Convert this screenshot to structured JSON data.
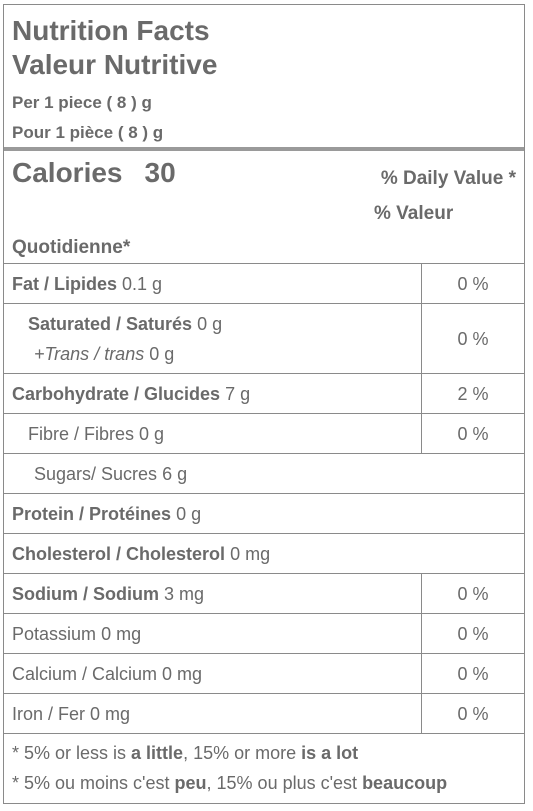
{
  "title_en": "Nutrition Facts",
  "title_fr": "Valeur Nutritive",
  "serving_en": "Per 1 piece ( 8 ) g",
  "serving_fr": "Pour 1 pièce ( 8 ) g",
  "calories_label": "Calories",
  "calories_value": "30",
  "dv_line1": "% Daily Value *",
  "dv_line2": "% Valeur",
  "dv_line3": "Quotidienne*",
  "rows": {
    "fat": {
      "label": "Fat / Lipides",
      "amount": "0.1 g",
      "pct": "0 %"
    },
    "saturated": {
      "label": "Saturated / Saturés",
      "amount": "0 g",
      "pct": "0 %"
    },
    "trans": {
      "label": "+Trans / trans",
      "amount": "0 g"
    },
    "carb": {
      "label": "Carbohydrate / Glucides",
      "amount": "7 g",
      "pct": "2 %"
    },
    "fibre": {
      "label": "Fibre / Fibres",
      "amount": "0 g",
      "pct": "0 %"
    },
    "sugars": {
      "label": "Sugars/ Sucres",
      "amount": "6 g"
    },
    "protein": {
      "label": "Protein / Protéines",
      "amount": "0 g"
    },
    "cholesterol": {
      "label": "Cholesterol / Cholesterol",
      "amount": "0 mg"
    },
    "sodium": {
      "label": "Sodium / Sodium",
      "amount": "3 mg",
      "pct": "0 %"
    },
    "potassium": {
      "label": "Potassium",
      "amount": "0 mg",
      "pct": "0 %"
    },
    "calcium": {
      "label": "Calcium / Calcium",
      "amount": "0 mg",
      "pct": "0 %"
    },
    "iron": {
      "label": "Iron / Fer",
      "amount": "0 mg",
      "pct": "0 %"
    }
  },
  "footnote_en": {
    "a": "* 5% or less is ",
    "b": "a little",
    "c": ", 15% or more ",
    "d": "is a lot"
  },
  "footnote_fr": {
    "a": "* 5% ou moins c'est ",
    "b": "peu",
    "c": ", 15% ou plus c'est ",
    "d": "beaucoup"
  }
}
